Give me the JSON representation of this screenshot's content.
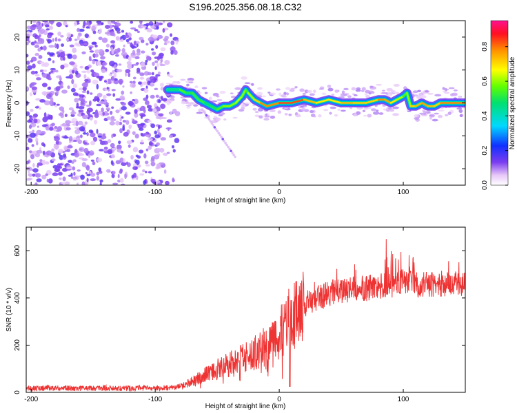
{
  "title": "S196.2025.356.08.18.C32",
  "chart_data": [
    {
      "type": "heatmap",
      "name": "spectrogram",
      "xlabel": "Height of straight line (km)",
      "ylabel": "Frequency (Hz)",
      "xlim": [
        -204,
        150
      ],
      "ylim": [
        -25,
        25
      ],
      "xticks": [
        "-200",
        "-100",
        "0",
        "100"
      ],
      "xtick_values": [
        -200,
        -100,
        0,
        100
      ],
      "yticks": [
        "-20",
        "-10",
        "0",
        "10",
        "20"
      ],
      "ytick_values": [
        -20,
        -10,
        0,
        10,
        20
      ],
      "colorbar": {
        "label": "Normalized spectral amplitude",
        "range": [
          0.0,
          0.95
        ],
        "ticks": [
          "0.0",
          "0.2",
          "0.4",
          "0.6",
          "0.8"
        ],
        "tick_values": [
          0.0,
          0.2,
          0.4,
          0.6,
          0.8
        ]
      },
      "noise_region_x": [
        -204,
        -82
      ],
      "ridge": {
        "x": [
          -90,
          -80,
          -75,
          -70,
          -65,
          -60,
          -55,
          -50,
          -45,
          -40,
          -35,
          -30,
          -27,
          -25,
          -20,
          -15,
          -10,
          0,
          10,
          20,
          30,
          40,
          50,
          60,
          70,
          80,
          85,
          90,
          95,
          100,
          103,
          106,
          110,
          115,
          120,
          125,
          130,
          140,
          150
        ],
        "y": [
          4,
          4,
          3,
          3,
          1,
          0,
          -1,
          -2,
          -1,
          -1,
          0,
          2,
          4,
          3,
          1,
          0,
          -1,
          0,
          0,
          1,
          0,
          1,
          0,
          0,
          0,
          1,
          1,
          0,
          1,
          2,
          3,
          -1,
          -1,
          0,
          -1,
          -1,
          0,
          0,
          0
        ],
        "amplitude": [
          0.35,
          0.6,
          0.55,
          0.5,
          0.6,
          0.5,
          0.5,
          0.55,
          0.6,
          0.65,
          0.6,
          0.7,
          0.55,
          0.6,
          0.7,
          0.8,
          0.85,
          0.8,
          0.95,
          0.8,
          0.75,
          0.7,
          0.75,
          0.8,
          0.7,
          0.8,
          0.85,
          0.75,
          0.7,
          0.6,
          0.55,
          0.7,
          0.8,
          0.75,
          0.85,
          0.7,
          0.8,
          0.85,
          0.8
        ]
      }
    },
    {
      "type": "line",
      "name": "snr",
      "xlabel": "Height of straight line (km)",
      "ylabel": "SNR (10 * v/v)",
      "xlim": [
        -204,
        150
      ],
      "ylim": [
        0,
        700
      ],
      "xticks": [
        "-200",
        "-100",
        "0",
        "100"
      ],
      "xtick_values": [
        -200,
        -100,
        0,
        100
      ],
      "yticks": [
        "0",
        "200",
        "400",
        "600"
      ],
      "ytick_values": [
        0,
        200,
        400,
        600
      ],
      "series": [
        {
          "name": "SNR",
          "color": "#ee3333",
          "x": [
            -204,
            -180,
            -150,
            -120,
            -100,
            -85,
            -75,
            -65,
            -55,
            -45,
            -35,
            -25,
            -15,
            -5,
            0,
            10,
            20,
            30,
            40,
            50,
            60,
            70,
            80,
            90,
            95,
            100,
            105,
            110,
            120,
            130,
            140,
            150
          ],
          "y": [
            18,
            18,
            18,
            18,
            18,
            20,
            35,
            60,
            90,
            110,
            130,
            150,
            180,
            220,
            250,
            320,
            370,
            400,
            420,
            430,
            440,
            440,
            450,
            455,
            460,
            470,
            480,
            455,
            460,
            460,
            460,
            465
          ]
        }
      ]
    }
  ]
}
